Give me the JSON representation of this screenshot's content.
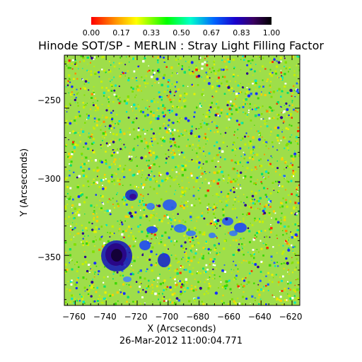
{
  "colorbar": {
    "ticks": [
      "0.00",
      "0.17",
      "0.33",
      "0.50",
      "0.67",
      "0.83",
      "1.00"
    ]
  },
  "title": "Hinode SOT/SP - MERLIN : Stray Light Filling Factor",
  "axes": {
    "x_label": "X (Arcseconds)",
    "y_label": "Y (Arcseconds)",
    "x_ticks": [
      "−760",
      "−740",
      "−720",
      "−700",
      "−680",
      "−660",
      "−640",
      "−620"
    ],
    "y_ticks": [
      "−250",
      "−300",
      "−350"
    ],
    "x_range": [
      -767,
      -615
    ],
    "y_range": [
      -384,
      -214
    ]
  },
  "timestamp": "26-Mar-2012 11:00:04.771",
  "colormap": [
    "#ff0000",
    "#ffa500",
    "#ffff00",
    "#00ff00",
    "#00ffff",
    "#0000ff",
    "#4b0082",
    "#000000"
  ]
}
